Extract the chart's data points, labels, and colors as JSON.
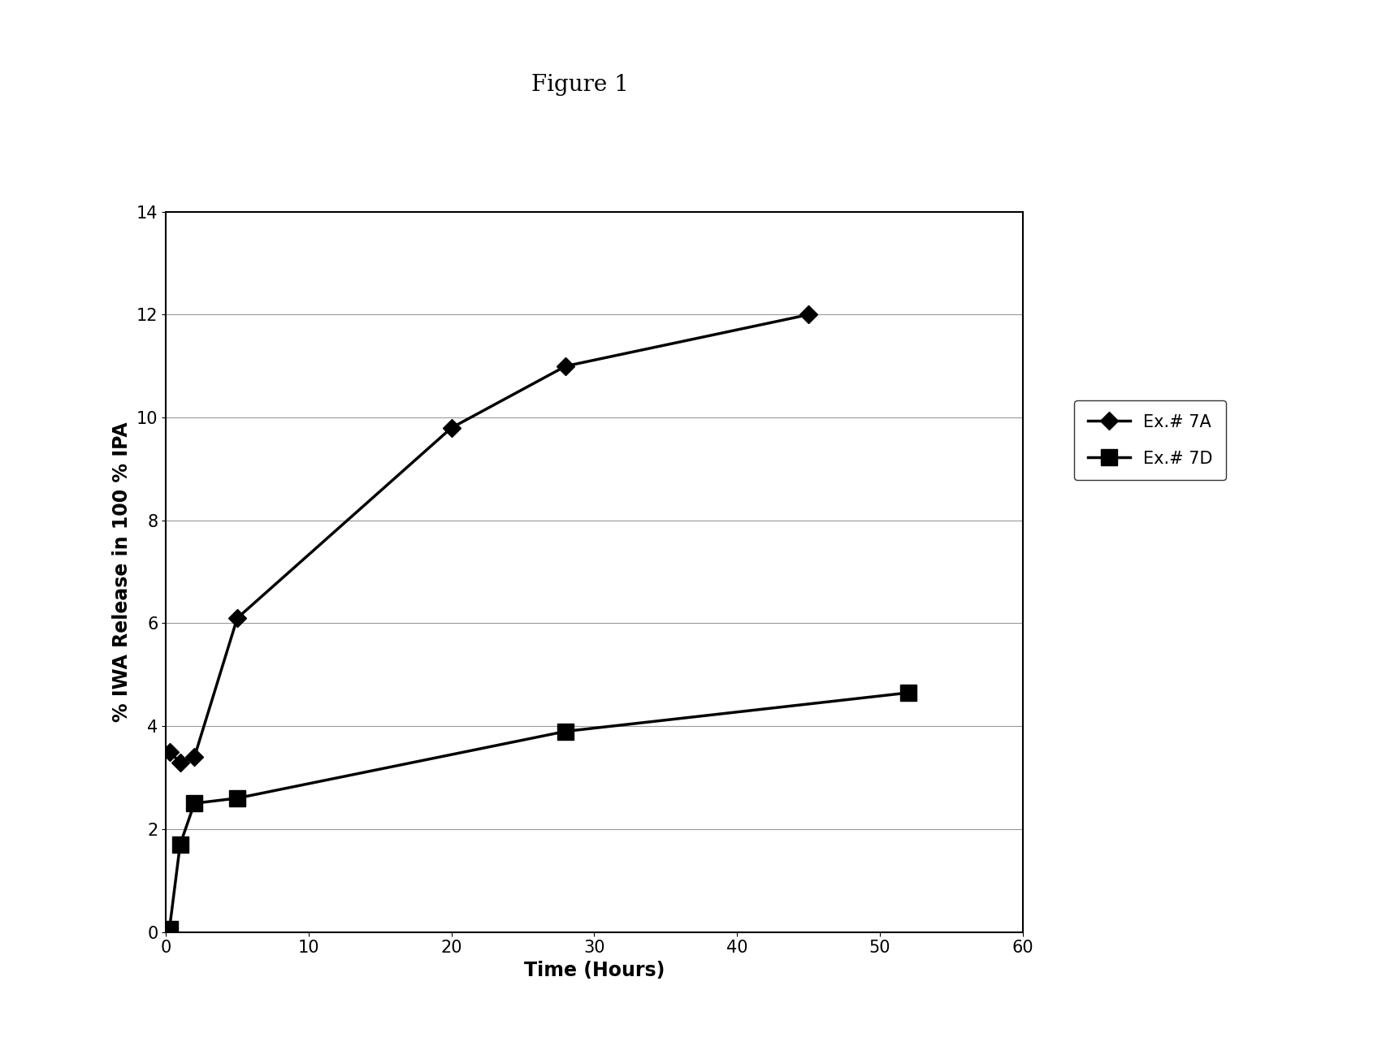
{
  "title": "Figure 1",
  "xlabel": "Time (Hours)",
  "ylabel": "% IWA Release in 100 % IPA",
  "xlim": [
    0,
    60
  ],
  "ylim": [
    0,
    14
  ],
  "xticks": [
    0,
    10,
    20,
    30,
    40,
    50,
    60
  ],
  "yticks": [
    0,
    2,
    4,
    6,
    8,
    10,
    12,
    14
  ],
  "series": [
    {
      "label": "Ex.# 7A",
      "x": [
        0.25,
        1,
        2,
        5,
        20,
        28,
        45
      ],
      "y": [
        3.5,
        3.3,
        3.4,
        6.1,
        9.8,
        11.0,
        12.0
      ],
      "marker": "D",
      "markersize": 11,
      "linewidth": 2.5,
      "color": "#000000",
      "markerfacecolor": "#000000"
    },
    {
      "label": "Ex.# 7D",
      "x": [
        0.25,
        1,
        2,
        5,
        28,
        52
      ],
      "y": [
        0.05,
        1.7,
        2.5,
        2.6,
        3.9,
        4.65
      ],
      "marker": "s",
      "markersize": 14,
      "linewidth": 2.5,
      "color": "#000000",
      "markerfacecolor": "#000000"
    }
  ],
  "background_color": "#ffffff",
  "grid_color": "#999999",
  "title_fontsize": 20,
  "axis_label_fontsize": 17,
  "tick_fontsize": 15,
  "legend_fontsize": 15
}
